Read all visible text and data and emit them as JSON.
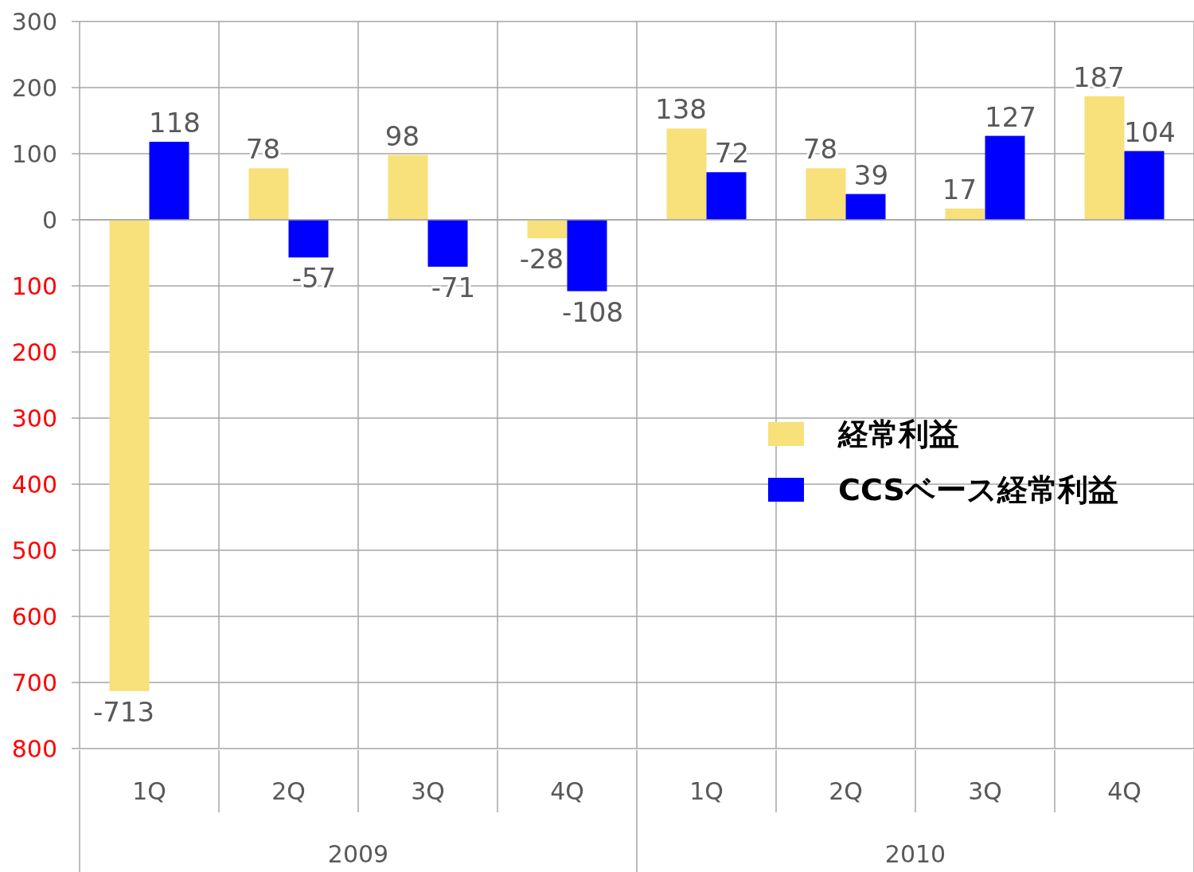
{
  "chart_data": {
    "type": "bar",
    "categories": [
      "1Q",
      "2Q",
      "3Q",
      "4Q",
      "1Q",
      "2Q",
      "3Q",
      "4Q"
    ],
    "series": [
      {
        "name": "経常利益",
        "color": "#f8e07a",
        "values": [
          -713,
          78,
          98,
          -28,
          138,
          78,
          17,
          187
        ]
      },
      {
        "name": "CCSベース経常利益",
        "color": "#0000ff",
        "values": [
          118,
          -57,
          -71,
          -108,
          72,
          39,
          127,
          104
        ]
      }
    ],
    "ylim": [
      -800,
      300
    ],
    "yticks": [
      300,
      200,
      100,
      0,
      {
        "value": -100,
        "label": "100"
      },
      {
        "value": -200,
        "label": "200"
      },
      {
        "value": -300,
        "label": "300"
      },
      {
        "value": -400,
        "label": "400"
      },
      {
        "value": -500,
        "label": "500"
      },
      {
        "value": -600,
        "label": "600"
      },
      {
        "value": -700,
        "label": "700"
      },
      {
        "value": -800,
        "label": "800"
      }
    ],
    "annotations": [
      "2009",
      "2010"
    ],
    "data_labels": true,
    "grid": true,
    "legend": "right"
  }
}
